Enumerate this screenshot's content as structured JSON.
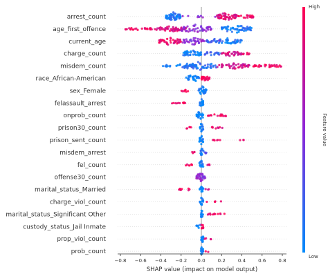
{
  "chart_data": {
    "type": "scatter",
    "xlabel": "SHAP value (impact on model output)",
    "xlim": [
      -0.85,
      0.85
    ],
    "xticks": [
      "−0.8",
      "−0.6",
      "−0.4",
      "−0.2",
      "0.0",
      "0.2",
      "0.4",
      "0.6",
      "0.8"
    ],
    "xtick_values": [
      -0.8,
      -0.6,
      -0.4,
      -0.2,
      0.0,
      0.2,
      0.4,
      0.6,
      0.8
    ],
    "colorbar": {
      "label": "Feature value",
      "high": "High",
      "low": "Low",
      "low_color": "#008afb",
      "high_color": "#ff0052"
    },
    "features": [
      {
        "name": "arrest_count",
        "clusters": [
          {
            "x0": -0.35,
            "x1": -0.2,
            "spread": 0.9,
            "n": 60,
            "v": 0.1
          },
          {
            "x0": 0.15,
            "x1": 0.35,
            "spread": 0.8,
            "n": 50,
            "v": 0.85
          },
          {
            "x0": 0.35,
            "x1": 0.52,
            "spread": 0.4,
            "n": 18,
            "v": 0.95
          },
          {
            "x0": -0.2,
            "x1": 0.15,
            "spread": 0.2,
            "n": 8,
            "v": 0.5
          }
        ]
      },
      {
        "name": "age_first_offence",
        "clusters": [
          {
            "x0": -0.75,
            "x1": -0.45,
            "spread": 0.3,
            "n": 25,
            "v": 0.95
          },
          {
            "x0": -0.45,
            "x1": -0.15,
            "spread": 0.6,
            "n": 50,
            "v": 0.85
          },
          {
            "x0": -0.2,
            "x1": 0.1,
            "spread": 0.9,
            "n": 45,
            "v": 0.5
          },
          {
            "x0": 0.2,
            "x1": 0.5,
            "spread": 0.8,
            "n": 55,
            "v": 0.1
          }
        ]
      },
      {
        "name": "current_age",
        "clusters": [
          {
            "x0": -0.42,
            "x1": -0.2,
            "spread": 0.8,
            "n": 45,
            "v": 0.9
          },
          {
            "x0": -0.2,
            "x1": 0.05,
            "spread": 0.7,
            "n": 35,
            "v": 0.5
          },
          {
            "x0": 0.05,
            "x1": 0.4,
            "spread": 0.7,
            "n": 50,
            "v": 0.1
          },
          {
            "x0": 0.05,
            "x1": 0.2,
            "spread": 0.3,
            "n": 10,
            "v": 0.3
          }
        ]
      },
      {
        "name": "charge_count",
        "clusters": [
          {
            "x0": -0.18,
            "x1": 0.0,
            "spread": 0.8,
            "n": 40,
            "v": 0.05
          },
          {
            "x0": 0.0,
            "x1": 0.2,
            "spread": 0.4,
            "n": 18,
            "v": 0.2
          },
          {
            "x0": 0.2,
            "x1": 0.4,
            "spread": 0.6,
            "n": 30,
            "v": 0.8
          },
          {
            "x0": 0.4,
            "x1": 0.48,
            "spread": 0.3,
            "n": 6,
            "v": 0.9
          }
        ]
      },
      {
        "name": "misdem_count",
        "clusters": [
          {
            "x0": -0.38,
            "x1": -0.05,
            "spread": 0.4,
            "n": 35,
            "v": 0.05
          },
          {
            "x0": -0.2,
            "x1": 0.15,
            "spread": 0.9,
            "n": 45,
            "v": 0.15
          },
          {
            "x0": 0.15,
            "x1": 0.5,
            "spread": 0.6,
            "n": 45,
            "v": 0.8
          },
          {
            "x0": 0.5,
            "x1": 0.8,
            "spread": 0.3,
            "n": 30,
            "v": 0.95
          }
        ]
      },
      {
        "name": "race_African-American",
        "clusters": [
          {
            "x0": -0.15,
            "x1": -0.02,
            "spread": 0.8,
            "n": 30,
            "v": 0.02
          },
          {
            "x0": 0.0,
            "x1": 0.08,
            "spread": 0.7,
            "n": 25,
            "v": 0.98
          }
        ]
      },
      {
        "name": "sex_Female",
        "clusters": [
          {
            "x0": -0.03,
            "x1": 0.05,
            "spread": 0.9,
            "n": 25,
            "v": 0.02
          },
          {
            "x0": -0.2,
            "x1": -0.12,
            "spread": 0.3,
            "n": 7,
            "v": 0.98
          },
          {
            "x0": 0.0,
            "x1": 0.05,
            "spread": 0.5,
            "n": 8,
            "v": 0.05
          }
        ]
      },
      {
        "name": "felassault_arrest",
        "clusters": [
          {
            "x0": -0.02,
            "x1": 0.02,
            "spread": 0.9,
            "n": 20,
            "v": 0.02
          },
          {
            "x0": -0.3,
            "x1": -0.05,
            "spread": 0.2,
            "n": 12,
            "v": 0.98
          }
        ]
      },
      {
        "name": "onprob_count",
        "clusters": [
          {
            "x0": -0.05,
            "x1": 0.02,
            "spread": 0.9,
            "n": 25,
            "v": 0.02
          },
          {
            "x0": 0.05,
            "x1": 0.3,
            "spread": 0.3,
            "n": 15,
            "v": 0.95
          }
        ]
      },
      {
        "name": "prison30_count",
        "clusters": [
          {
            "x0": -0.02,
            "x1": 0.02,
            "spread": 0.9,
            "n": 18,
            "v": 0.02
          },
          {
            "x0": -0.18,
            "x1": -0.1,
            "spread": 0.2,
            "n": 5,
            "v": 0.95
          },
          {
            "x0": 0.1,
            "x1": 0.22,
            "spread": 0.3,
            "n": 8,
            "v": 0.9
          }
        ]
      },
      {
        "name": "prison_sent_count",
        "clusters": [
          {
            "x0": -0.02,
            "x1": 0.02,
            "spread": 0.9,
            "n": 18,
            "v": 0.02
          },
          {
            "x0": 0.08,
            "x1": 0.2,
            "spread": 0.2,
            "n": 6,
            "v": 0.9
          },
          {
            "x0": 0.35,
            "x1": 0.42,
            "spread": 0.2,
            "n": 3,
            "v": 0.98
          }
        ]
      },
      {
        "name": "misdem_arrest",
        "clusters": [
          {
            "x0": -0.01,
            "x1": 0.02,
            "spread": 0.9,
            "n": 14,
            "v": 0.05
          },
          {
            "x0": -0.1,
            "x1": -0.06,
            "spread": 0.2,
            "n": 4,
            "v": 0.95
          },
          {
            "x0": 0.03,
            "x1": 0.06,
            "spread": 0.2,
            "n": 4,
            "v": 0.3
          }
        ]
      },
      {
        "name": "fel_count",
        "clusters": [
          {
            "x0": -0.02,
            "x1": 0.02,
            "spread": 0.9,
            "n": 16,
            "v": 0.02
          },
          {
            "x0": -0.18,
            "x1": -0.08,
            "spread": 0.2,
            "n": 7,
            "v": 0.95
          },
          {
            "x0": 0.06,
            "x1": 0.12,
            "spread": 0.2,
            "n": 4,
            "v": 0.8
          }
        ]
      },
      {
        "name": "offense30_count",
        "clusters": [
          {
            "x0": -0.05,
            "x1": 0.04,
            "spread": 0.9,
            "n": 30,
            "v": 0.5
          }
        ]
      },
      {
        "name": "marital_status_Married",
        "clusters": [
          {
            "x0": -0.02,
            "x1": 0.02,
            "spread": 0.9,
            "n": 16,
            "v": 0.02
          },
          {
            "x0": -0.22,
            "x1": -0.1,
            "spread": 0.3,
            "n": 10,
            "v": 0.95
          },
          {
            "x0": 0.04,
            "x1": 0.08,
            "spread": 0.2,
            "n": 3,
            "v": 0.8
          }
        ]
      },
      {
        "name": "charge_viol_count",
        "clusters": [
          {
            "x0": -0.02,
            "x1": 0.02,
            "spread": 0.9,
            "n": 14,
            "v": 0.02
          },
          {
            "x0": 0.05,
            "x1": 0.2,
            "spread": 0.2,
            "n": 5,
            "v": 0.95
          }
        ]
      },
      {
        "name": "marital_status_Significant Other",
        "clusters": [
          {
            "x0": -0.01,
            "x1": 0.02,
            "spread": 0.9,
            "n": 12,
            "v": 0.02
          },
          {
            "x0": 0.05,
            "x1": 0.24,
            "spread": 0.2,
            "n": 12,
            "v": 0.95
          }
        ]
      },
      {
        "name": "custody_status_Jail Inmate",
        "clusters": [
          {
            "x0": -0.05,
            "x1": 0.0,
            "spread": 0.5,
            "n": 6,
            "v": 0.05
          },
          {
            "x0": 0.0,
            "x1": 0.02,
            "spread": 0.8,
            "n": 8,
            "v": 0.95
          }
        ]
      },
      {
        "name": "prop_viol_count",
        "clusters": [
          {
            "x0": -0.01,
            "x1": 0.02,
            "spread": 0.9,
            "n": 14,
            "v": 0.02
          },
          {
            "x0": 0.03,
            "x1": 0.14,
            "spread": 0.2,
            "n": 4,
            "v": 0.95
          }
        ]
      },
      {
        "name": "prob_count",
        "clusters": [
          {
            "x0": -0.01,
            "x1": 0.02,
            "spread": 0.9,
            "n": 14,
            "v": 0.05
          },
          {
            "x0": 0.04,
            "x1": 0.08,
            "spread": 0.2,
            "n": 2,
            "v": 0.9
          }
        ]
      }
    ]
  }
}
